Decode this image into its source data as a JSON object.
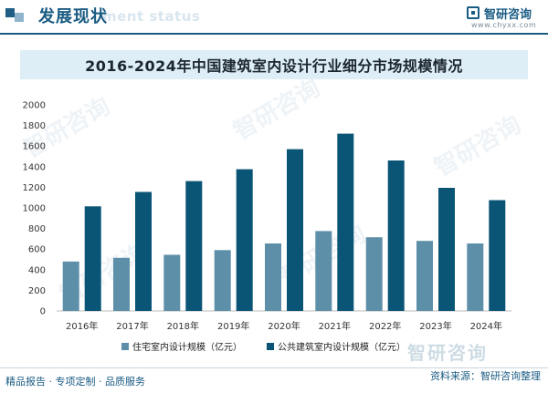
{
  "header": {
    "title": "发展现状",
    "subtitle": "ment status",
    "brand": "智研咨询",
    "url": "www.chyxx.com"
  },
  "watermark_text": "智研咨询",
  "footer": {
    "left": "精品报告 · 专项定制 · 品质服务",
    "source": "资料来源：智研咨询整理"
  },
  "colors": {
    "residential": "#5e8fa8",
    "public": "#0a5476",
    "header_blue": "#1a5b83"
  },
  "chart_data": {
    "type": "bar",
    "title": "2016-2024年中国建筑室内设计行业细分市场规模情况",
    "categories": [
      "2016年",
      "2017年",
      "2018年",
      "2019年",
      "2020年",
      "2021年",
      "2022年",
      "2023年",
      "2024年"
    ],
    "series": [
      {
        "name": "住宅室内设计规模（亿元）",
        "values": [
          480,
          515,
          545,
          590,
          655,
          775,
          715,
          680,
          655
        ]
      },
      {
        "name": "公共建筑室内设计规模（亿元）",
        "values": [
          1015,
          1155,
          1260,
          1375,
          1570,
          1720,
          1460,
          1195,
          1075
        ]
      }
    ],
    "ylim": [
      0,
      2000
    ],
    "yticks": [
      "0",
      "200",
      "400",
      "600",
      "800",
      "1000",
      "1200",
      "1400",
      "1600",
      "1800",
      "2000"
    ],
    "grid": false,
    "legend_position": "bottom"
  }
}
